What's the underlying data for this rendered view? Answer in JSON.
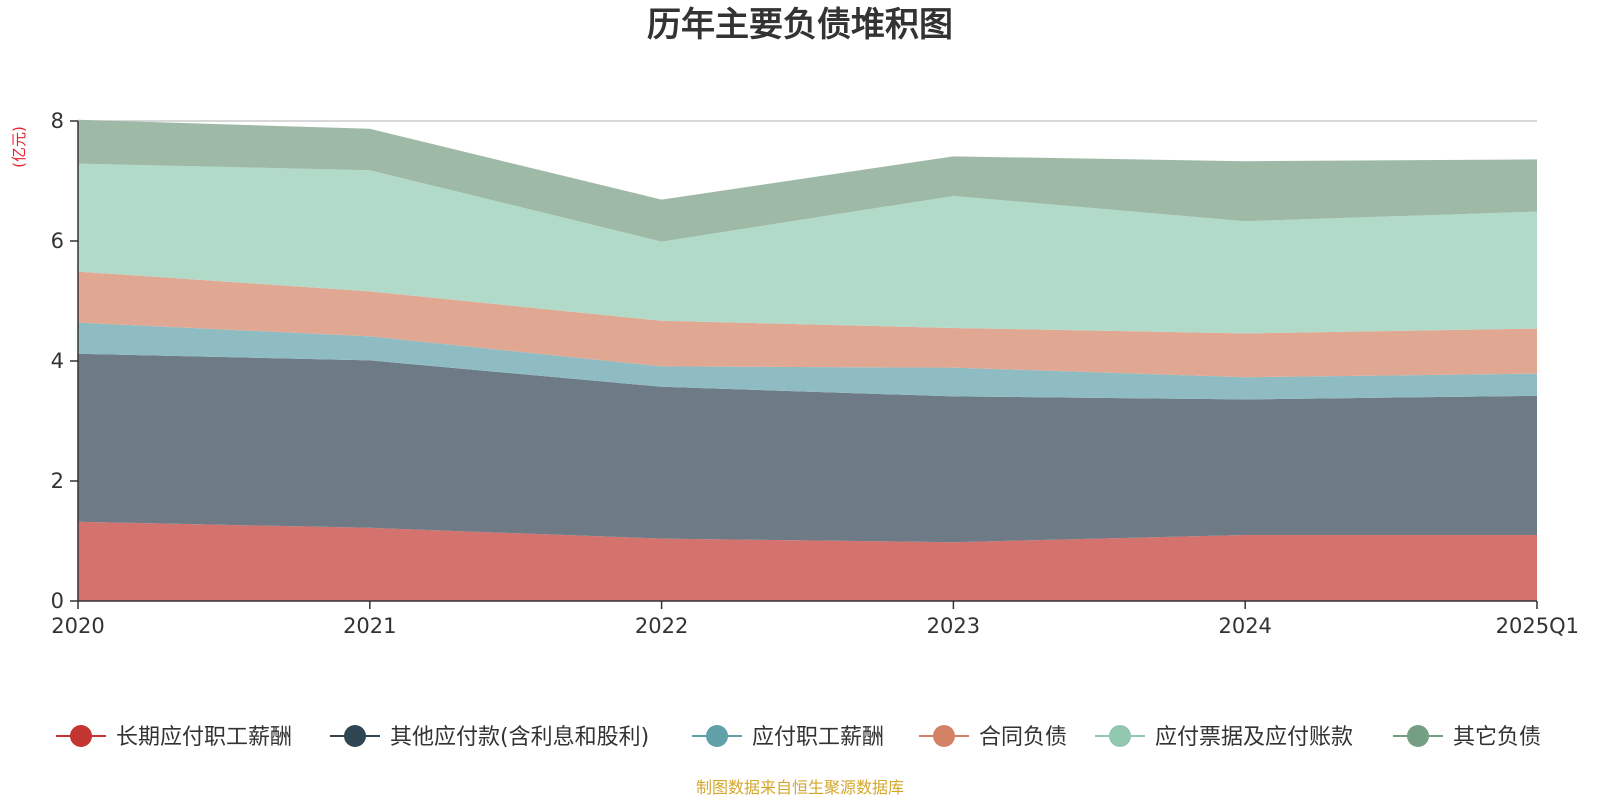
{
  "chart_data": {
    "type": "area",
    "stacked": true,
    "title": "历年主要负债堆积图",
    "unit_label": "(亿元)",
    "source": "制图数据来自恒生聚源数据库",
    "x": [
      "2020",
      "2021",
      "2022",
      "2023",
      "2024",
      "2025Q1"
    ],
    "ylim": [
      0,
      8
    ],
    "yticks": [
      "0",
      "2",
      "4",
      "6",
      "8"
    ],
    "grid": true,
    "legend_position": "bottom",
    "series": [
      {
        "name": "长期应付职工薪酬",
        "color": "#c23531",
        "area_color": "#d4726e",
        "values": [
          1.32,
          1.22,
          1.04,
          0.98,
          1.1,
          1.1
        ]
      },
      {
        "name": "其他应付款(含利息和股利)",
        "color": "#2f4554",
        "area_color": "#6e7b87",
        "values": [
          2.8,
          2.79,
          2.53,
          2.43,
          2.26,
          2.32
        ]
      },
      {
        "name": "应付职工薪酬",
        "color": "#61a0a8",
        "area_color": "#8fbcc2",
        "values": [
          0.52,
          0.4,
          0.34,
          0.48,
          0.37,
          0.37
        ]
      },
      {
        "name": "合同负债",
        "color": "#d48265",
        "area_color": "#e0a893",
        "values": [
          0.85,
          0.75,
          0.76,
          0.66,
          0.73,
          0.75
        ]
      },
      {
        "name": "应付票据及应付账款",
        "color": "#91c7ae",
        "area_color": "#b2dac8",
        "values": [
          1.8,
          2.02,
          1.32,
          2.2,
          1.87,
          1.95
        ]
      },
      {
        "name": "其它负债",
        "color": "#749f83",
        "area_color": "#9eba a7",
        "values": [
          0.73,
          0.69,
          0.7,
          0.66,
          1.0,
          0.87
        ]
      }
    ]
  }
}
